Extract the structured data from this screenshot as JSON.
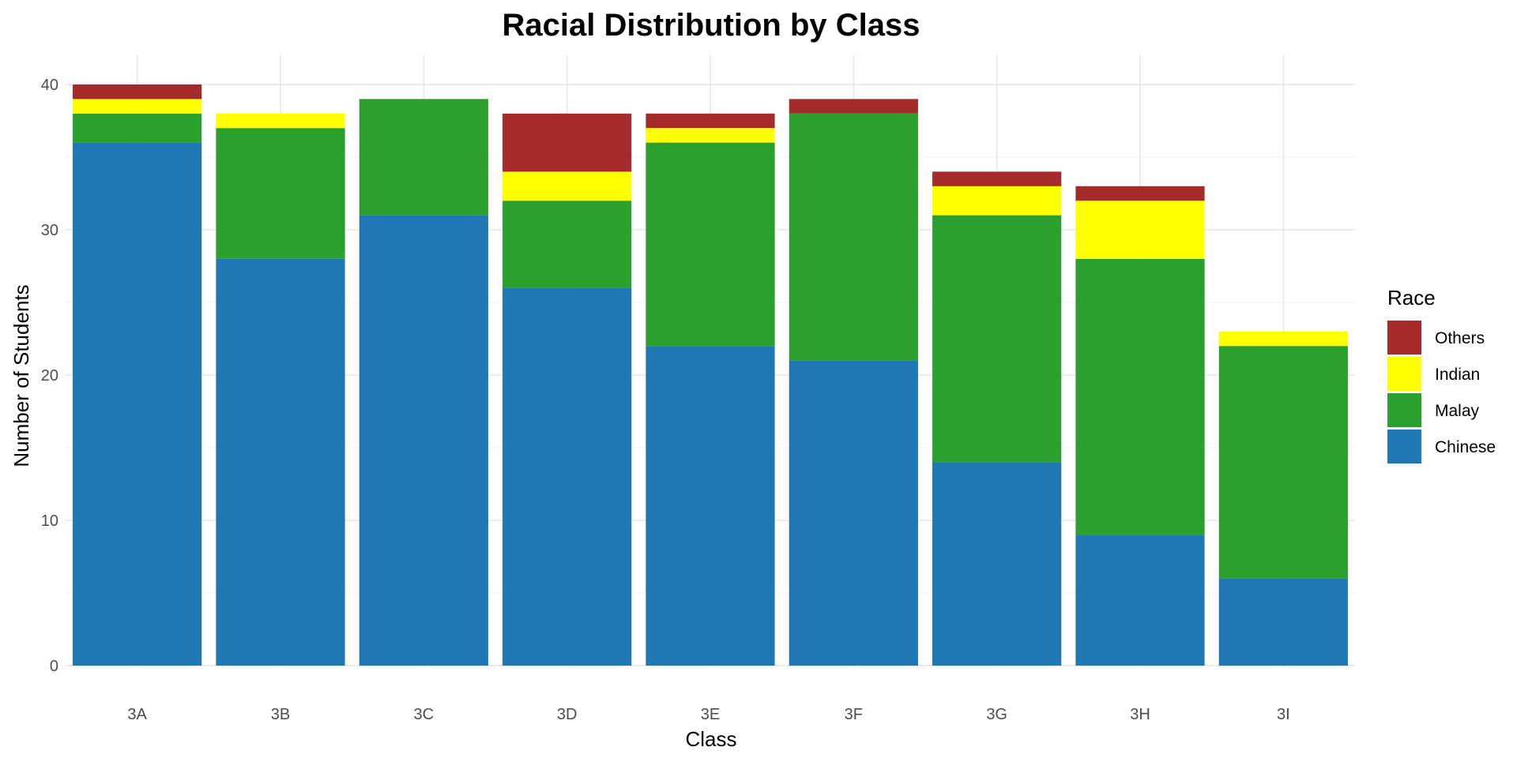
{
  "chart_data": {
    "type": "bar",
    "stacked": true,
    "title": "Racial Distribution by Class",
    "xlabel": "Class",
    "ylabel": "Number of Students",
    "categories": [
      "3A",
      "3B",
      "3C",
      "3D",
      "3E",
      "3F",
      "3G",
      "3H",
      "3I"
    ],
    "series": [
      {
        "name": "Chinese",
        "color": "#1f77b4",
        "values": [
          36,
          28,
          31,
          26,
          22,
          21,
          14,
          9,
          6
        ]
      },
      {
        "name": "Malay",
        "color": "#2ca02c",
        "values": [
          2,
          9,
          8,
          6,
          14,
          17,
          17,
          19,
          16
        ]
      },
      {
        "name": "Indian",
        "color": "#ffff00",
        "values": [
          1,
          1,
          0,
          2,
          1,
          0,
          2,
          4,
          1
        ]
      },
      {
        "name": "Others",
        "color": "#a52a2a",
        "values": [
          1,
          0,
          0,
          4,
          1,
          1,
          1,
          1,
          0
        ]
      }
    ],
    "ylim": [
      0,
      40
    ],
    "yticks": [
      0,
      10,
      20,
      30,
      40
    ],
    "grid": true,
    "legend": {
      "title": "Race",
      "position": "right",
      "order": [
        "Others",
        "Indian",
        "Malay",
        "Chinese"
      ]
    }
  }
}
